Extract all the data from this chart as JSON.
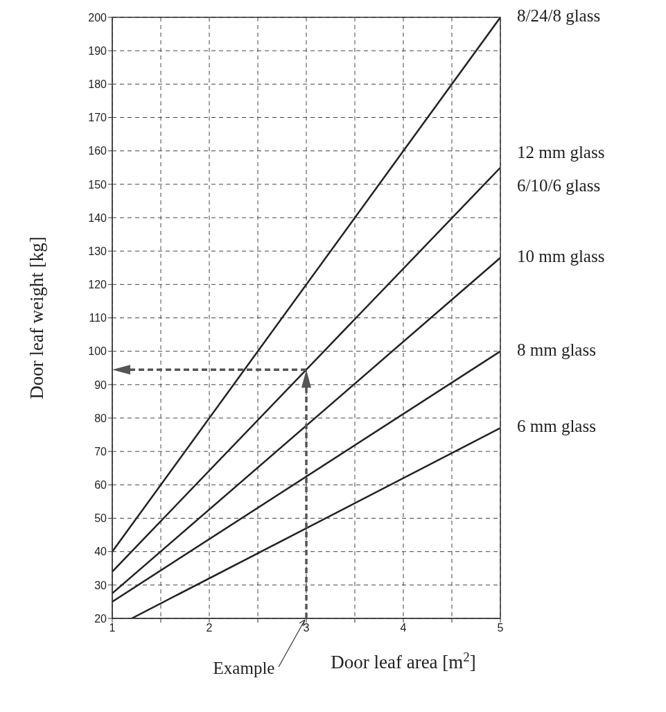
{
  "chart_data": {
    "type": "line",
    "xlabel": "Door leaf area [m$^{2}$]",
    "ylabel": "Door leaf weight [kg]",
    "x": [
      1,
      5
    ],
    "series": [
      {
        "name": "8/24/8 glass",
        "color": "#222222",
        "values": [
          40,
          200
        ]
      },
      {
        "name": "12 mm glass",
        "color": "#222222",
        "values": [
          34,
          155
        ]
      },
      {
        "name": "10 mm glass",
        "color": "#222222",
        "values": [
          27.5,
          128
        ]
      },
      {
        "name": "8 mm glass",
        "color": "#222222",
        "values": [
          25,
          100
        ]
      },
      {
        "name": "6 mm glass",
        "color": "#222222",
        "x": [
          1.2,
          5
        ],
        "values": [
          20,
          77
        ]
      }
    ],
    "annotations": [
      {
        "text": "6/10/6 glass",
        "x": 5,
        "y": 155
      },
      "Example"
    ],
    "ref_lines": [
      {
        "axis": "x",
        "value": 3,
        "color": "#555555",
        "line_style": "dashed"
      },
      {
        "axis": "y",
        "value": 94.5,
        "color": "#555555",
        "line_style": "dashed"
      }
    ],
    "xlim": [
      1,
      5
    ],
    "xticks": [
      1,
      {
        "value": 1.5,
        "label": null
      },
      2,
      {
        "value": 2.5,
        "label": null
      },
      3,
      {
        "value": 3.5,
        "label": null
      },
      4,
      {
        "value": 4.5,
        "label": null
      },
      5
    ],
    "ylim": [
      20,
      200
    ],
    "yticks": [
      20,
      30,
      40,
      50,
      60,
      70,
      80,
      90,
      100,
      110,
      120,
      130,
      140,
      150,
      160,
      170,
      180,
      190,
      200
    ],
    "grid": true,
    "marker": "none",
    "line_style": "solid"
  }
}
